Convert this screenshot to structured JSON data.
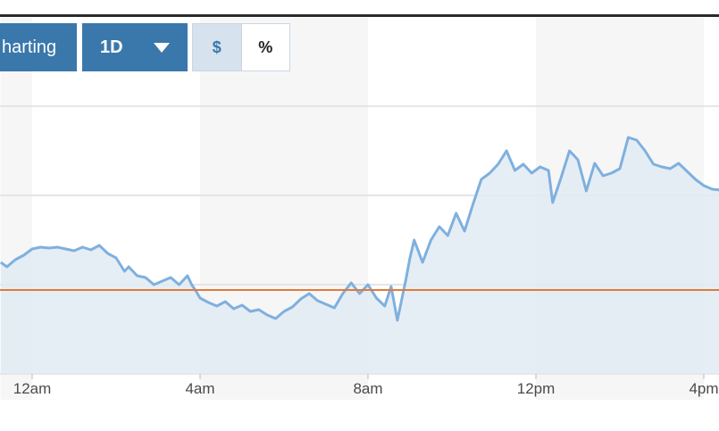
{
  "toolbar": {
    "charting_label": "harting",
    "range_label": "1D",
    "toggle_dollar": "$",
    "toggle_percent": "%"
  },
  "colors": {
    "button_bg": "#3a78ab",
    "line": "#7fb0de",
    "area": "#e2ebf3",
    "reference_line": "#e07b39",
    "grid": "#dddddd",
    "band": "#f6f6f7"
  },
  "chart_data": {
    "type": "area",
    "x_ticks": [
      {
        "label": "12am",
        "hour": 0
      },
      {
        "label": "4am",
        "hour": 4
      },
      {
        "label": "8am",
        "hour": 8
      },
      {
        "label": "12pm",
        "hour": 12
      },
      {
        "label": "4pm",
        "hour": 16
      }
    ],
    "x_range_hours": [
      -0.75,
      16.4
    ],
    "y_range": [
      0,
      300
    ],
    "gridlines": [
      100,
      200,
      300
    ],
    "reference_value": 94,
    "grid": true,
    "legend": "none",
    "series": [
      {
        "points": [
          [
            -0.75,
            125
          ],
          [
            -0.6,
            120
          ],
          [
            -0.4,
            128
          ],
          [
            -0.2,
            133
          ],
          [
            0,
            140
          ],
          [
            0.2,
            142
          ],
          [
            0.4,
            141
          ],
          [
            0.6,
            142
          ],
          [
            0.8,
            140
          ],
          [
            1.0,
            138
          ],
          [
            1.2,
            142
          ],
          [
            1.4,
            139
          ],
          [
            1.6,
            144
          ],
          [
            1.8,
            135
          ],
          [
            2.0,
            130
          ],
          [
            2.2,
            115
          ],
          [
            2.3,
            120
          ],
          [
            2.5,
            110
          ],
          [
            2.7,
            108
          ],
          [
            2.9,
            100
          ],
          [
            3.1,
            104
          ],
          [
            3.3,
            108
          ],
          [
            3.5,
            100
          ],
          [
            3.7,
            110
          ],
          [
            3.8,
            100
          ],
          [
            3.9,
            93
          ],
          [
            4.0,
            85
          ],
          [
            4.2,
            80
          ],
          [
            4.4,
            76
          ],
          [
            4.6,
            81
          ],
          [
            4.8,
            73
          ],
          [
            5.0,
            77
          ],
          [
            5.2,
            70
          ],
          [
            5.4,
            72
          ],
          [
            5.6,
            66
          ],
          [
            5.8,
            62
          ],
          [
            6.0,
            70
          ],
          [
            6.2,
            75
          ],
          [
            6.4,
            84
          ],
          [
            6.6,
            90
          ],
          [
            6.8,
            82
          ],
          [
            7.0,
            78
          ],
          [
            7.2,
            74
          ],
          [
            7.4,
            90
          ],
          [
            7.6,
            102
          ],
          [
            7.8,
            90
          ],
          [
            8.0,
            100
          ],
          [
            8.2,
            85
          ],
          [
            8.4,
            76
          ],
          [
            8.55,
            98
          ],
          [
            8.7,
            60
          ],
          [
            8.9,
            105
          ],
          [
            9.0,
            130
          ],
          [
            9.1,
            150
          ],
          [
            9.3,
            125
          ],
          [
            9.5,
            150
          ],
          [
            9.7,
            165
          ],
          [
            9.9,
            155
          ],
          [
            10.1,
            180
          ],
          [
            10.3,
            160
          ],
          [
            10.5,
            190
          ],
          [
            10.7,
            218
          ],
          [
            10.9,
            225
          ],
          [
            11.1,
            235
          ],
          [
            11.3,
            250
          ],
          [
            11.5,
            228
          ],
          [
            11.7,
            235
          ],
          [
            11.9,
            225
          ],
          [
            12.1,
            232
          ],
          [
            12.3,
            228
          ],
          [
            12.4,
            192
          ],
          [
            12.6,
            220
          ],
          [
            12.8,
            250
          ],
          [
            13.0,
            240
          ],
          [
            13.2,
            205
          ],
          [
            13.4,
            236
          ],
          [
            13.6,
            222
          ],
          [
            13.8,
            225
          ],
          [
            14.0,
            230
          ],
          [
            14.2,
            265
          ],
          [
            14.4,
            262
          ],
          [
            14.6,
            250
          ],
          [
            14.8,
            235
          ],
          [
            15.0,
            232
          ],
          [
            15.2,
            230
          ],
          [
            15.4,
            236
          ],
          [
            15.6,
            227
          ],
          [
            15.8,
            218
          ],
          [
            16.0,
            211
          ],
          [
            16.2,
            207
          ],
          [
            16.4,
            206
          ]
        ]
      }
    ]
  }
}
